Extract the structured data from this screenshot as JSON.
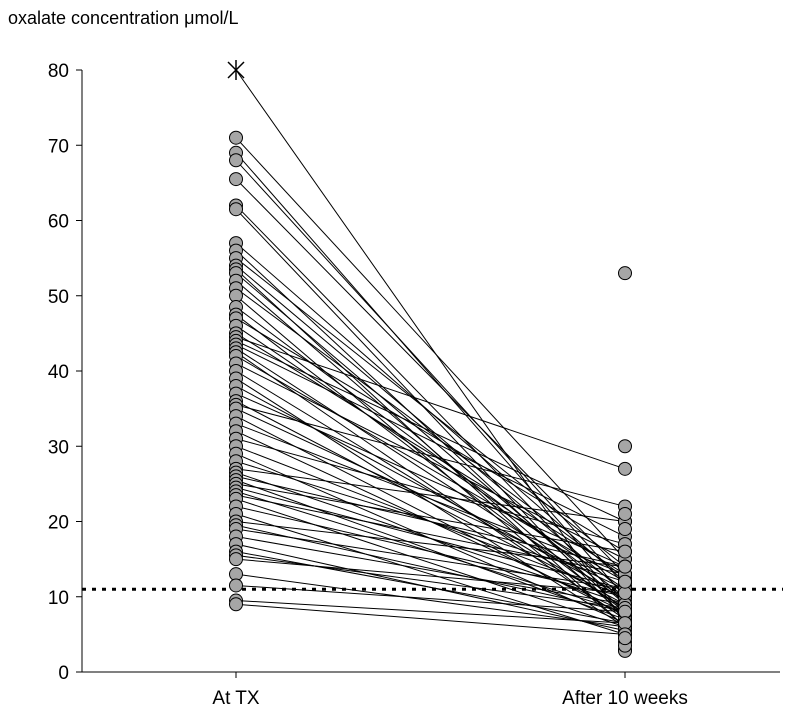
{
  "chart_data": {
    "type": "scatter",
    "ylabel": "oxalate concentration μmol/L",
    "categories": [
      "At TX",
      "After 10 weeks"
    ],
    "ylim": [
      0,
      80
    ],
    "yticks": [
      0,
      10,
      20,
      30,
      40,
      50,
      60,
      70,
      80
    ],
    "grid": false,
    "reference_line": {
      "value": 11,
      "style": "dotted"
    },
    "capped_point": {
      "category": "At TX",
      "value": 80,
      "marker": "asterisk"
    },
    "pairs": [
      [
        80,
        6.5
      ],
      [
        71,
        15
      ],
      [
        69,
        10
      ],
      [
        68,
        11.5
      ],
      [
        65.5,
        13
      ],
      [
        62,
        9
      ],
      [
        61.5,
        7
      ],
      [
        57,
        12
      ],
      [
        56,
        8
      ],
      [
        55,
        14
      ],
      [
        54,
        10.5
      ],
      [
        53.5,
        6
      ],
      [
        53,
        9
      ],
      [
        52,
        7.5
      ],
      [
        51,
        12.5
      ],
      [
        50,
        6
      ],
      [
        48.5,
        10
      ],
      [
        47.5,
        8
      ],
      [
        47,
        16
      ],
      [
        46,
        11
      ],
      [
        45,
        13
      ],
      [
        44.5,
        27
      ],
      [
        44,
        20
      ],
      [
        43.5,
        18
      ],
      [
        43,
        9.5
      ],
      [
        42.5,
        7
      ],
      [
        42,
        12
      ],
      [
        41,
        15
      ],
      [
        40,
        8.5
      ],
      [
        39,
        6
      ],
      [
        38,
        10
      ],
      [
        37,
        14
      ],
      [
        36,
        9
      ],
      [
        35.5,
        22
      ],
      [
        35,
        11
      ],
      [
        34,
        7.5
      ],
      [
        33,
        13
      ],
      [
        32,
        8
      ],
      [
        31,
        17
      ],
      [
        30,
        10
      ],
      [
        29,
        6.5
      ],
      [
        28,
        12
      ],
      [
        27,
        20
      ],
      [
        26.5,
        9
      ],
      [
        26,
        14
      ],
      [
        25.5,
        7
      ],
      [
        25,
        16
      ],
      [
        24.5,
        11
      ],
      [
        24,
        8
      ],
      [
        23.5,
        13
      ],
      [
        23,
        6
      ],
      [
        22,
        10
      ],
      [
        21,
        5
      ],
      [
        20,
        14
      ],
      [
        19.5,
        8
      ],
      [
        19,
        11
      ],
      [
        18,
        9
      ],
      [
        17,
        5.5
      ],
      [
        16,
        6.5
      ],
      [
        15.5,
        8.5
      ],
      [
        15,
        10.5
      ],
      [
        13,
        6
      ],
      [
        11.5,
        8
      ],
      [
        9.5,
        6.5
      ],
      [
        9,
        5
      ]
    ],
    "after_only": [
      53,
      30,
      4,
      3,
      2.8,
      3.5,
      4.5,
      12,
      19,
      21
    ]
  }
}
